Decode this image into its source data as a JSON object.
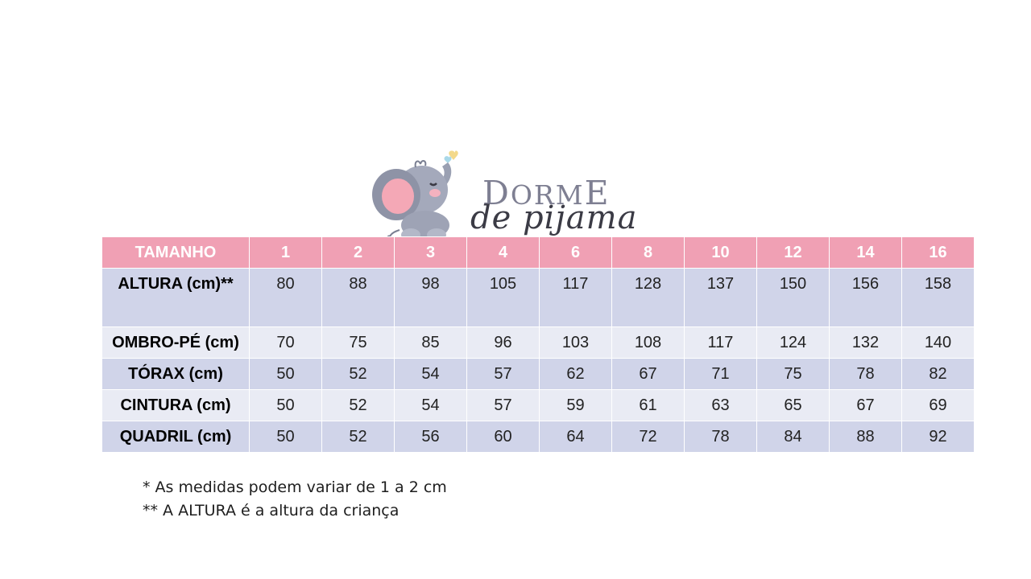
{
  "brand": {
    "name_top_first": "D",
    "name_top_middle": "ORM",
    "name_top_last": "E",
    "name_bottom": "de pijama"
  },
  "table": {
    "header_label": "TAMANHO",
    "sizes": [
      "1",
      "2",
      "3",
      "4",
      "6",
      "8",
      "10",
      "12",
      "14",
      "16"
    ],
    "rows": [
      {
        "label": "ALTURA (cm)**",
        "values": [
          "80",
          "88",
          "98",
          "105",
          "117",
          "128",
          "137",
          "150",
          "156",
          "158"
        ]
      },
      {
        "label": "OMBRO-PÉ (cm)",
        "values": [
          "70",
          "75",
          "85",
          "96",
          "103",
          "108",
          "117",
          "124",
          "132",
          "140"
        ]
      },
      {
        "label": "TÓRAX (cm)",
        "values": [
          "50",
          "52",
          "54",
          "57",
          "62",
          "67",
          "71",
          "75",
          "78",
          "82"
        ]
      },
      {
        "label": "CINTURA (cm)",
        "values": [
          "50",
          "52",
          "54",
          "57",
          "59",
          "61",
          "63",
          "65",
          "67",
          "69"
        ]
      },
      {
        "label": "QUADRIL (cm)",
        "values": [
          "50",
          "52",
          "56",
          "60",
          "64",
          "72",
          "78",
          "84",
          "88",
          "92"
        ]
      }
    ]
  },
  "notes": [
    "* As medidas podem variar de 1 a 2 cm",
    "** A ALTURA é a altura da criança"
  ],
  "colors": {
    "header_pink": "#f0a0b4",
    "row_dark": "#d0d4e9",
    "row_light": "#e9ebf4"
  }
}
